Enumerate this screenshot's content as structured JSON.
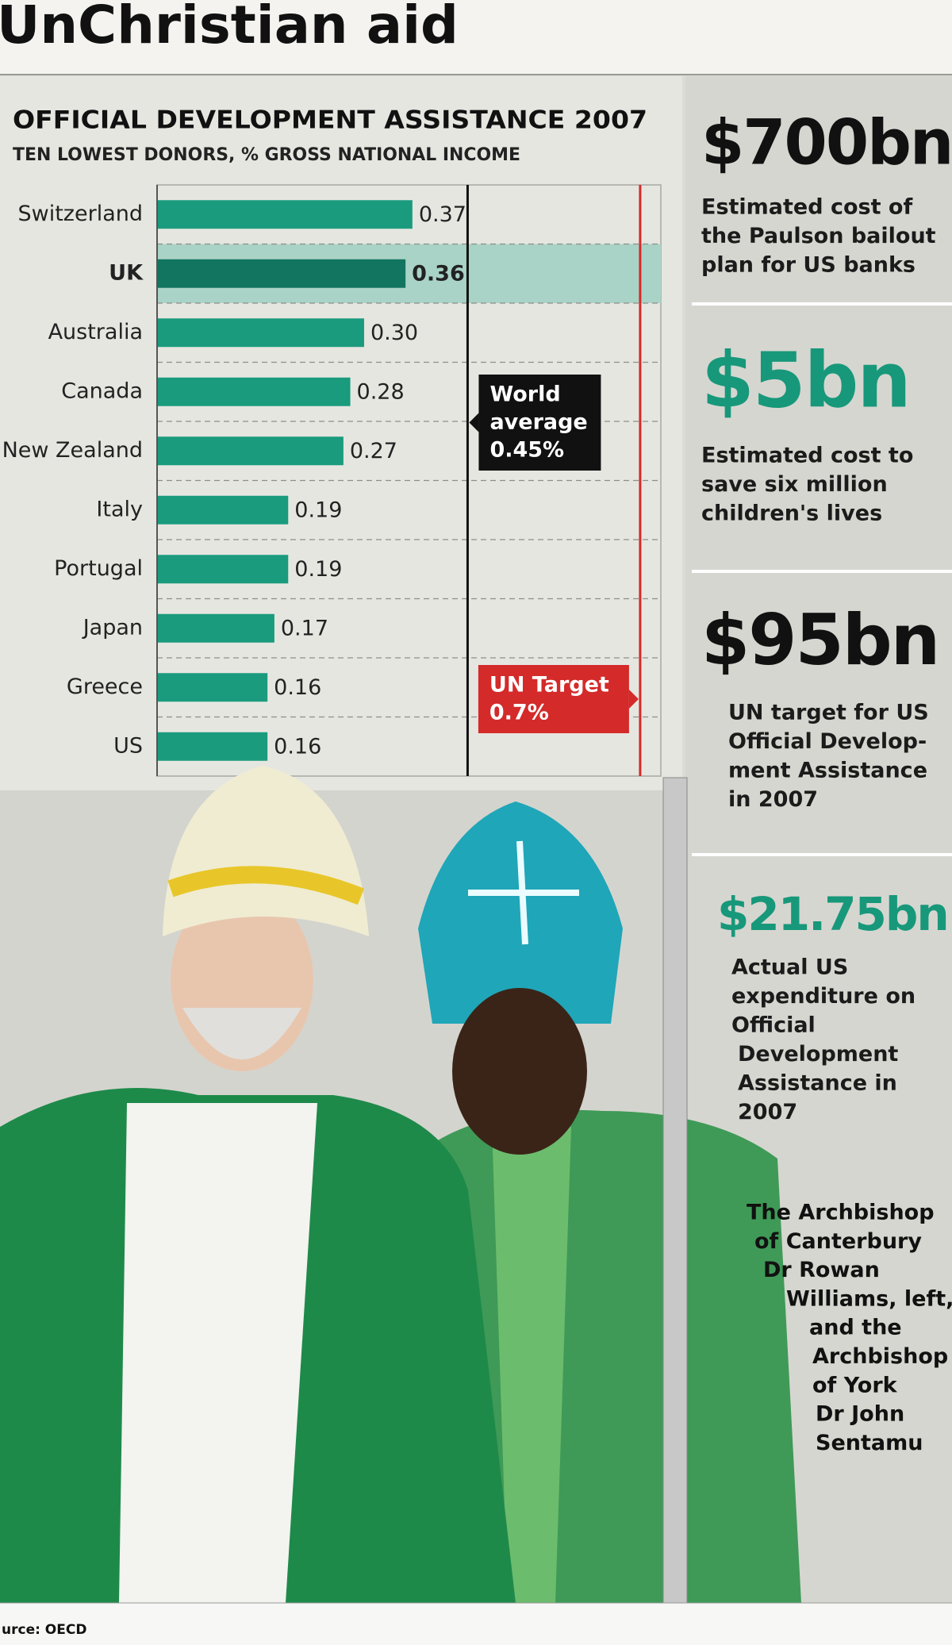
{
  "headline": "UnChristian aid",
  "chart_data": {
    "type": "bar",
    "orientation": "horizontal",
    "title": "OFFICIAL DEVELOPMENT ASSISTANCE 2007",
    "subtitle": "TEN LOWEST DONORS, % GROSS NATIONAL INCOME",
    "categories": [
      "Switzerland",
      "UK",
      "Australia",
      "Canada",
      "New Zealand",
      "Italy",
      "Portugal",
      "Japan",
      "Greece",
      "US"
    ],
    "values": [
      0.37,
      0.36,
      0.3,
      0.28,
      0.27,
      0.19,
      0.19,
      0.17,
      0.16,
      0.16
    ],
    "value_labels": [
      "0.37",
      "0.36",
      "0.30",
      "0.28",
      "0.27",
      "0.19",
      "0.19",
      "0.17",
      "0.16",
      "0.16"
    ],
    "color": "#1a9b7d",
    "highlight": "UK",
    "highlight_color": "#127560",
    "highlight_band_color": "#a9d3c6",
    "xlim": [
      0,
      0.73
    ],
    "reference_lines": [
      {
        "value": 0.45,
        "label": [
          "World",
          "average",
          "0.45%"
        ],
        "color": "#111111"
      },
      {
        "value": 0.7,
        "label": [
          "UN Target",
          "0.7%"
        ],
        "color": "#d42a2a"
      }
    ]
  },
  "sidebar": [
    {
      "amount": "$700bn",
      "color": "#111111",
      "description": [
        "Estimated cost of",
        "the Paulson bailout",
        "plan for US banks"
      ]
    },
    {
      "amount": "$5bn",
      "color": "#17987a",
      "description": [
        "Estimated cost to",
        "save six million",
        "children's lives"
      ]
    },
    {
      "amount": "$95bn",
      "color": "#111111",
      "description": [
        "UN target for US",
        "Official Develop-",
        "ment Assistance",
        "in 2007"
      ]
    },
    {
      "amount": "$21.75bn",
      "color": "#17987a",
      "description": [
        "Actual US",
        "expenditure on",
        "Official",
        "Development",
        "Assistance in",
        "2007"
      ]
    }
  ],
  "caption": [
    "The Archbishop",
    "of Canterbury",
    "Dr Rowan",
    "Williams, left,",
    "and the",
    "Archbishop",
    "of York",
    "Dr John",
    "Sentamu"
  ],
  "source": "urce: OECD"
}
